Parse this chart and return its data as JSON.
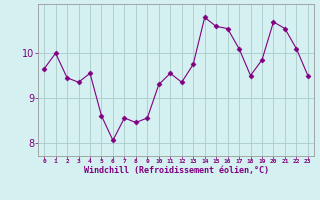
{
  "x": [
    0,
    1,
    2,
    3,
    4,
    5,
    6,
    7,
    8,
    9,
    10,
    11,
    12,
    13,
    14,
    15,
    16,
    17,
    18,
    19,
    20,
    21,
    22,
    23
  ],
  "y": [
    9.65,
    10.0,
    9.45,
    9.35,
    9.55,
    8.6,
    8.05,
    8.55,
    8.45,
    8.55,
    9.3,
    9.55,
    9.35,
    9.75,
    10.8,
    10.6,
    10.55,
    10.1,
    9.5,
    9.85,
    10.7,
    10.55,
    10.1,
    9.5
  ],
  "line_color": "#800080",
  "marker": "D",
  "marker_size": 2.5,
  "bg_color": "#d5f0f0",
  "grid_color": "#aacccc",
  "xlabel": "Windchill (Refroidissement éolien,°C)",
  "xlabel_color": "#800080",
  "tick_color": "#800080",
  "axis_color": "#999999",
  "ylim": [
    7.7,
    11.1
  ],
  "yticks": [
    8,
    9,
    10
  ],
  "xtick_labels": [
    "0",
    "1",
    "2",
    "3",
    "4",
    "5",
    "6",
    "7",
    "8",
    "9",
    "10",
    "11",
    "12",
    "13",
    "14",
    "15",
    "16",
    "17",
    "18",
    "19",
    "20",
    "21",
    "22",
    "23"
  ]
}
